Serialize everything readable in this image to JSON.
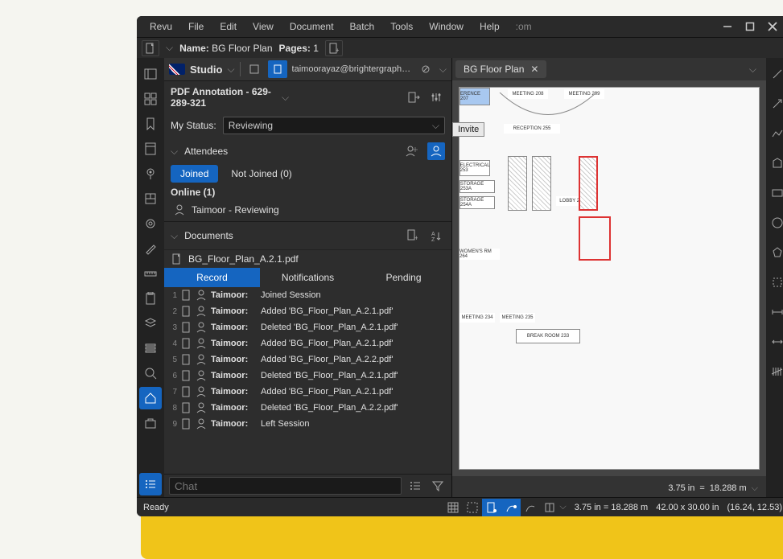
{
  "menu": [
    "Revu",
    "File",
    "Edit",
    "View",
    "Document",
    "Batch",
    "Tools",
    "Window",
    "Help"
  ],
  "menu_extra": ":om",
  "info_bar": {
    "name_label": "Name:",
    "name_value": "BG Floor Plan",
    "pages_label": "Pages:",
    "pages_value": "1"
  },
  "studio": {
    "label": "Studio",
    "email": "taimoorayaz@brightergraphics.co..."
  },
  "session": {
    "title": "PDF Annotation - 629-289-321"
  },
  "status": {
    "label": "My Status:",
    "value": "Reviewing"
  },
  "attendees": {
    "label": "Attendees",
    "tabs": [
      {
        "label": "Joined",
        "active": true
      },
      {
        "label": "Not Joined (0)",
        "active": false
      }
    ],
    "online_label": "Online (1)",
    "list": [
      {
        "name": "Taimoor - Reviewing"
      }
    ]
  },
  "documents": {
    "label": "Documents",
    "file": "BG_Floor_Plan_A.2.1.pdf"
  },
  "record_tabs": [
    {
      "label": "Record",
      "active": true
    },
    {
      "label": "Notifications",
      "active": false
    },
    {
      "label": "Pending",
      "active": false
    }
  ],
  "records": [
    {
      "n": "1",
      "user": "Taimoor:",
      "action": "Joined Session"
    },
    {
      "n": "2",
      "user": "Taimoor:",
      "action": "Added 'BG_Floor_Plan_A.2.1.pdf'"
    },
    {
      "n": "3",
      "user": "Taimoor:",
      "action": "Deleted 'BG_Floor_Plan_A.2.1.pdf'"
    },
    {
      "n": "4",
      "user": "Taimoor:",
      "action": "Added 'BG_Floor_Plan_A.2.1.pdf'"
    },
    {
      "n": "5",
      "user": "Taimoor:",
      "action": "Added 'BG_Floor_Plan_A.2.2.pdf'"
    },
    {
      "n": "6",
      "user": "Taimoor:",
      "action": "Deleted 'BG_Floor_Plan_A.2.1.pdf'"
    },
    {
      "n": "7",
      "user": "Taimoor:",
      "action": "Added 'BG_Floor_Plan_A.2.1.pdf'"
    },
    {
      "n": "8",
      "user": "Taimoor:",
      "action": "Deleted 'BG_Floor_Plan_A.2.2.pdf'"
    },
    {
      "n": "9",
      "user": "Taimoor:",
      "action": "Left Session"
    }
  ],
  "chat_placeholder": "Chat",
  "doc_tab": {
    "title": "BG Floor Plan"
  },
  "invite_tooltip": "Invite",
  "floorplan_labels": {
    "conf": "ERENCE 207",
    "m208": "MEETING 208",
    "m209": "MEETING 209",
    "recep": "RECEPTION 255",
    "elec": "ELECTRICAL 253",
    "stor253a": "STORAGE 253A",
    "stor254a": "STORAGE 254A",
    "lobby": "LOBBY 256",
    "womens": "WOMEN'S RM 264",
    "m234": "MEETING 234",
    "m235": "MEETING 235",
    "break": "BREAK ROOM 233"
  },
  "doc_zoom": {
    "in": "3.75 in",
    "eq": "=",
    "m": "18.288 m"
  },
  "status_bar": {
    "ready": "Ready",
    "scale": "3.75 in = 18.288 m",
    "dims": "42.00 x 30.00 in",
    "coords": "(16.24, 12.53)"
  },
  "left_rail_icons": [
    "panel",
    "grid",
    "bookmark",
    "thumbnails",
    "pin",
    "floorplan",
    "gear",
    "pen",
    "ruler",
    "clipboard",
    "layers",
    "stack",
    "search",
    "home",
    "briefcase",
    "list"
  ],
  "right_rail_icons": [
    "line",
    "arrow",
    "polyline",
    "shape",
    "rect",
    "circle",
    "poly",
    "crop",
    "dimension",
    "cut",
    "count"
  ]
}
